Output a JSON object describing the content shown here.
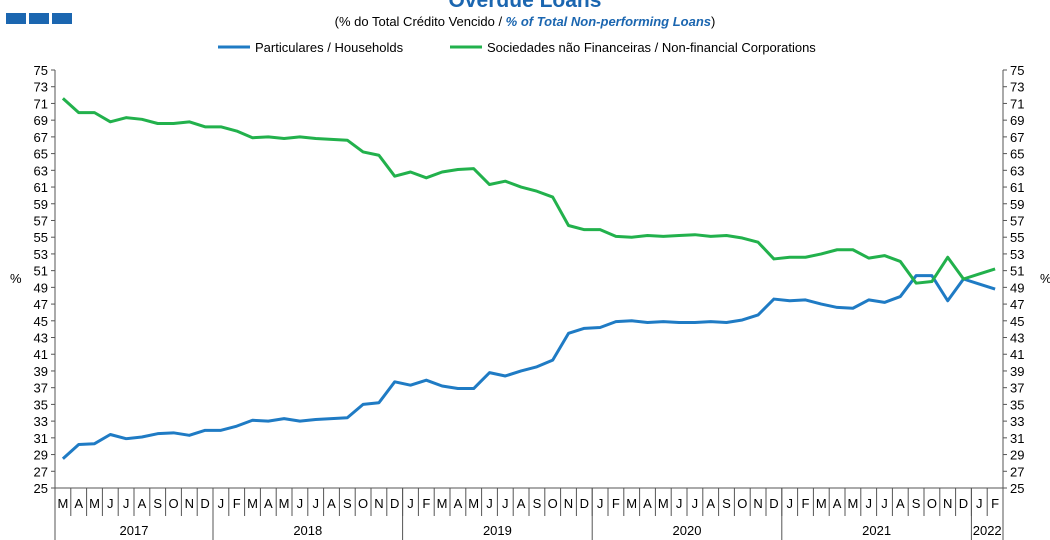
{
  "chart_data": {
    "type": "line",
    "title": "Overdue Loans",
    "subtitle": [
      "(% do Total  Crédito Vencido / ",
      "% of Total Non-performing Loans",
      ")"
    ],
    "y_label": "%",
    "y2_label": "%",
    "categories": [
      "M",
      "A",
      "M",
      "J",
      "J",
      "A",
      "S",
      "O",
      "N",
      "D",
      "J",
      "F",
      "M",
      "A",
      "M",
      "J",
      "J",
      "A",
      "S",
      "O",
      "N",
      "D",
      "J",
      "F",
      "M",
      "A",
      "M",
      "J",
      "J",
      "A",
      "S",
      "O",
      "N",
      "D",
      "J",
      "F",
      "M",
      "A",
      "M",
      "J",
      "J",
      "A",
      "S",
      "O",
      "N",
      "D",
      "J",
      "F",
      "M",
      "A",
      "M",
      "J",
      "J",
      "A",
      "S",
      "O",
      "N",
      "D",
      "J",
      "F"
    ],
    "years": [
      "2017",
      "2018",
      "2019",
      "2020",
      "2021",
      "2022"
    ],
    "series": [
      {
        "name": "Particulares / Households",
        "color": "#1f7bc4",
        "values": [
          28.5,
          30.2,
          30.3,
          31.4,
          30.9,
          31.1,
          31.5,
          31.6,
          31.3,
          31.9,
          31.9,
          32.4,
          33.1,
          33.0,
          33.3,
          33.0,
          33.2,
          33.3,
          33.4,
          35.0,
          35.2,
          37.7,
          37.3,
          37.9,
          37.2,
          36.9,
          36.9,
          38.8,
          38.4,
          39.0,
          39.5,
          40.3,
          43.5,
          44.1,
          44.2,
          44.9,
          45.0,
          44.8,
          44.9,
          44.8,
          44.8,
          44.9,
          44.8,
          45.1,
          45.7,
          47.6,
          47.4,
          47.5,
          47.0,
          46.6,
          46.5,
          47.5,
          47.2,
          47.9,
          50.4,
          50.4,
          47.4,
          50.0,
          49.4,
          48.8
        ]
      },
      {
        "name": "Sociedades não Financeiras / Non-financial Corporations",
        "color": "#22b14c",
        "values": [
          71.6,
          69.9,
          69.9,
          68.8,
          69.3,
          69.1,
          68.6,
          68.6,
          68.8,
          68.2,
          68.2,
          67.7,
          66.9,
          67.0,
          66.8,
          67.0,
          66.8,
          66.7,
          66.6,
          65.2,
          64.8,
          62.3,
          62.8,
          62.1,
          62.8,
          63.1,
          63.2,
          61.3,
          61.7,
          61.0,
          60.5,
          59.8,
          56.4,
          55.9,
          55.9,
          55.1,
          55.0,
          55.2,
          55.1,
          55.2,
          55.3,
          55.1,
          55.2,
          54.9,
          54.4,
          52.4,
          52.6,
          52.6,
          53.0,
          53.5,
          53.5,
          52.5,
          52.8,
          52.1,
          49.5,
          49.7,
          52.6,
          50.0,
          50.6,
          51.2
        ]
      }
    ],
    "ylim": [
      25,
      75
    ],
    "yticks": [
      25,
      27,
      29,
      31,
      33,
      35,
      37,
      39,
      41,
      43,
      45,
      47,
      49,
      51,
      53,
      55,
      57,
      59,
      61,
      63,
      65,
      67,
      69,
      71,
      73,
      75
    ],
    "legend": "top"
  }
}
